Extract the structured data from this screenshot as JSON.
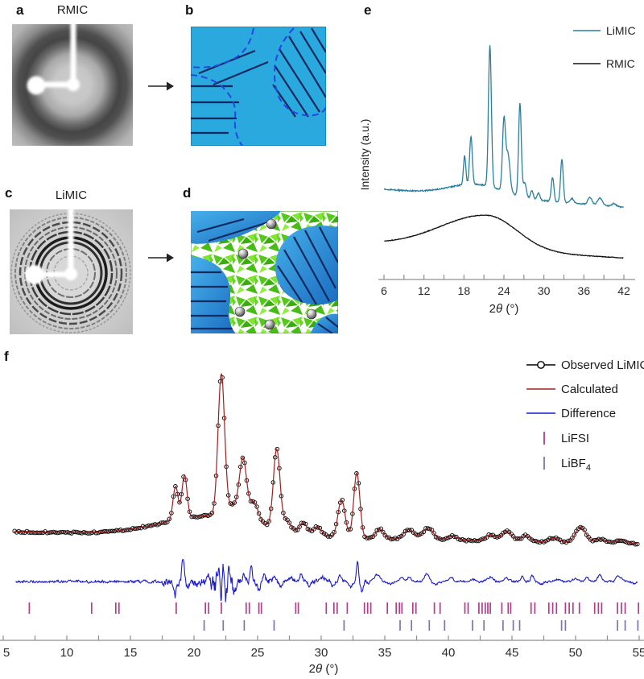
{
  "figure": {
    "panels": {
      "a": {
        "label": "a",
        "title": "RMIC",
        "description": "2D X-ray scattering pattern, diffuse amorphous halo with white beamstop"
      },
      "b": {
        "label": "b",
        "description": "Schematic: amorphous matrix with chain-aligned domains outlined by dashed boundaries",
        "colors": {
          "matrix": "#2aa9de",
          "chains": "#16295e",
          "boundary": "#2447e0"
        }
      },
      "c": {
        "label": "c",
        "title": "LiMIC",
        "description": "2D X-ray scattering pattern, sharp Debye-Scherrer rings with white beamstop"
      },
      "d": {
        "label": "d",
        "description": "Schematic: crystalline green ion-conducting channels between blue polymer domains with Li ions",
        "colors": {
          "domain": "#1b6cc0",
          "channel": "#54c91c",
          "ion": "#9a9a9a"
        }
      }
    }
  },
  "chart_data": [
    {
      "panel": "e",
      "type": "line",
      "title": "",
      "xlabel": "2θ (°)",
      "ylabel": "Intensity (a.u.)",
      "xlim": [
        6,
        42
      ],
      "x_major_step": 6,
      "x_minor_step": 3,
      "x_tick_labels": [
        "6",
        "12",
        "18",
        "24",
        "30",
        "36",
        "42"
      ],
      "grid": false,
      "legend_position": "top-right",
      "axis_color": "#8f8f8f",
      "series": [
        {
          "name": "LiMIC",
          "color": "#2a7f9e",
          "baseline": [
            0.377,
            0.303
          ],
          "humps": [
            [
              20,
              0.05,
              4
            ]
          ],
          "peaks": [
            [
              18.1,
              0.12,
              0.18
            ],
            [
              19.05,
              0.2,
              0.2
            ],
            [
              21.9,
              0.59,
              0.22
            ],
            [
              24.0,
              0.29,
              0.22
            ],
            [
              24.6,
              0.16,
              0.3
            ],
            [
              26.4,
              0.39,
              0.2
            ],
            [
              27.1,
              0.06,
              0.25
            ],
            [
              28.2,
              0.035,
              0.2
            ],
            [
              29.2,
              0.03,
              0.2
            ],
            [
              31.3,
              0.1,
              0.2
            ],
            [
              32.7,
              0.18,
              0.2
            ],
            [
              34.2,
              0.02,
              0.25
            ],
            [
              36.9,
              0.03,
              0.3
            ],
            [
              38.4,
              0.03,
              0.35
            ],
            [
              40.5,
              0.012,
              0.3
            ]
          ],
          "noise": 0.0025
        },
        {
          "name": "RMIC",
          "color": "#141414",
          "baseline": [
            0.148,
            0.09
          ],
          "humps": [
            [
              21.5,
              0.145,
              7,
              4.5
            ]
          ],
          "peaks": [],
          "noise": 0.0012
        }
      ]
    },
    {
      "panel": "f",
      "type": "line+scatter",
      "xlabel": "2θ (°)",
      "xlim": [
        5,
        55
      ],
      "x_major_step": 5,
      "x_minor_step": 2.5,
      "x_tick_labels": [
        "5",
        "10",
        "15",
        "20",
        "25",
        "30",
        "35",
        "40",
        "45",
        "50",
        "55"
      ],
      "grid": false,
      "legend_position": "top-right",
      "axis_color": "#8f8f8f",
      "legend": [
        {
          "name": "Observed LiMIC",
          "color": "#000000",
          "kind": "line-marker"
        },
        {
          "name": "Calculated",
          "color": "#a02020",
          "kind": "line"
        },
        {
          "name": "Difference",
          "color": "#1c1ccc",
          "kind": "line"
        },
        {
          "name": "LiFSI",
          "color": "#b03d8c",
          "kind": "tick"
        },
        {
          "name": "LiBF",
          "sub": "4",
          "color": "#7d74a8",
          "kind": "tick"
        }
      ],
      "pattern": {
        "observed_color": "#000000",
        "calculated_color": "#a02020",
        "marker_step": 0.16,
        "marker_radius": 2.3,
        "baseline": [
          0.163,
          0.102
        ],
        "humps": [
          [
            21.5,
            0.1,
            3.9
          ]
        ],
        "peaks": [
          [
            18.55,
            0.17,
            0.2
          ],
          [
            19.25,
            0.22,
            0.2
          ],
          [
            22.15,
            0.72,
            0.26
          ],
          [
            23.1,
            0.06,
            0.4
          ],
          [
            23.85,
            0.3,
            0.28
          ],
          [
            24.7,
            0.1,
            0.35
          ],
          [
            26.5,
            0.4,
            0.26
          ],
          [
            27.3,
            0.05,
            0.3
          ],
          [
            28.6,
            0.055,
            0.3
          ],
          [
            29.7,
            0.045,
            0.3
          ],
          [
            31.6,
            0.19,
            0.28
          ],
          [
            32.8,
            0.33,
            0.24
          ],
          [
            34.6,
            0.05,
            0.3
          ],
          [
            36.9,
            0.05,
            0.4
          ],
          [
            38.4,
            0.06,
            0.4
          ],
          [
            40.3,
            0.02,
            0.4
          ],
          [
            43.3,
            0.03,
            0.35
          ],
          [
            44.6,
            0.05,
            0.4
          ],
          [
            46.1,
            0.03,
            0.35
          ],
          [
            48.3,
            0.02,
            0.4
          ],
          [
            50.4,
            0.08,
            0.4
          ],
          [
            51.9,
            0.02,
            0.4
          ],
          [
            53.6,
            0.015,
            0.4
          ]
        ],
        "noise": 0.0018
      },
      "difference": {
        "color": "#1c1ccc",
        "features": [
          [
            18.5,
            -0.075,
            0.12
          ],
          [
            19.15,
            0.115,
            0.1
          ],
          [
            19.5,
            -0.03,
            0.12
          ],
          [
            20.2,
            -0.018,
            0.15
          ],
          [
            21.2,
            0.035,
            0.1
          ],
          [
            21.6,
            -0.04,
            0.08
          ],
          [
            21.9,
            0.05,
            0.07
          ],
          [
            22.1,
            -0.08,
            0.06
          ],
          [
            22.3,
            0.06,
            0.06
          ],
          [
            22.5,
            -0.09,
            0.07
          ],
          [
            22.8,
            0.04,
            0.08
          ],
          [
            23.2,
            -0.03,
            0.1
          ],
          [
            23.9,
            0.035,
            0.1
          ],
          [
            24.5,
            0.1,
            0.08
          ],
          [
            25.1,
            -0.05,
            0.1
          ],
          [
            25.5,
            0.025,
            0.12
          ],
          [
            26.3,
            0.035,
            0.12
          ],
          [
            26.8,
            -0.03,
            0.1
          ],
          [
            27.6,
            0.02,
            0.15
          ],
          [
            28.4,
            0.035,
            0.12
          ],
          [
            29.1,
            -0.025,
            0.12
          ],
          [
            30.2,
            0.02,
            0.15
          ],
          [
            30.9,
            -0.02,
            0.12
          ],
          [
            31.5,
            0.035,
            0.12
          ],
          [
            32.3,
            -0.035,
            0.1
          ],
          [
            32.85,
            0.1,
            0.08
          ],
          [
            33.2,
            -0.05,
            0.1
          ],
          [
            34.4,
            0.035,
            0.2
          ],
          [
            35.4,
            -0.012,
            0.2
          ],
          [
            36.3,
            0.022,
            0.15
          ],
          [
            36.9,
            0.022,
            0.15
          ],
          [
            38.3,
            0.04,
            0.18
          ],
          [
            39.0,
            -0.015,
            0.2
          ],
          [
            40.2,
            0.02,
            0.2
          ],
          [
            41.9,
            0.012,
            0.2
          ],
          [
            43.3,
            0.022,
            0.2
          ],
          [
            44.6,
            0.015,
            0.2
          ],
          [
            45.8,
            0.028,
            0.12
          ],
          [
            46.6,
            0.032,
            0.12
          ],
          [
            47.3,
            -0.012,
            0.2
          ],
          [
            48.5,
            0.012,
            0.2
          ],
          [
            50.0,
            0.015,
            0.2
          ],
          [
            50.9,
            0.022,
            0.15
          ],
          [
            51.9,
            0.032,
            0.15
          ],
          [
            53.4,
            0.028,
            0.2
          ],
          [
            54.6,
            -0.01,
            0.2
          ]
        ],
        "noise_zones": [
          [
            5,
            17.5,
            0.0055
          ],
          [
            17.5,
            21.3,
            0.016
          ],
          [
            21.3,
            23.3,
            0.042
          ],
          [
            23.3,
            26.5,
            0.016
          ],
          [
            26.5,
            34,
            0.009
          ],
          [
            34,
            55,
            0.0045
          ]
        ]
      },
      "lifsi_ticks": [
        7.05,
        11.95,
        13.85,
        14.1,
        18.6,
        20.9,
        21.15,
        22.15,
        24.1,
        24.35,
        25.1,
        25.3,
        28.0,
        28.2,
        30.4,
        31.0,
        31.25,
        32.05,
        33.4,
        33.65,
        33.9,
        35.2,
        35.9,
        36.15,
        36.35,
        37.2,
        37.45,
        38.9,
        39.35,
        41.3,
        41.55,
        42.4,
        42.65,
        42.9,
        43.1,
        43.3,
        44.2,
        44.7,
        44.9,
        46.5,
        46.8,
        47.9,
        48.2,
        48.5,
        49.2,
        49.5,
        49.8,
        50.3,
        51.5,
        51.8,
        52.05,
        53.3,
        53.6,
        53.9,
        54.95
      ],
      "libf4_ticks": [
        20.8,
        22.3,
        23.95,
        26.3,
        31.8,
        36.2,
        37.1,
        38.5,
        39.7,
        41.9,
        42.8,
        44.3,
        45.1,
        45.6,
        48.9,
        49.2,
        53.3,
        53.9,
        54.9
      ]
    }
  ]
}
